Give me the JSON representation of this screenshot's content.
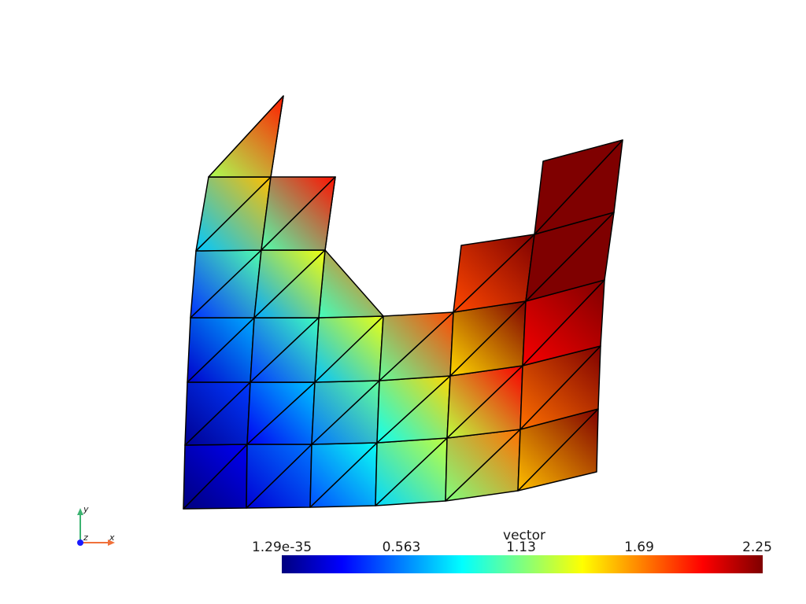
{
  "scalar_bar": {
    "title": "vector",
    "tick_labels": [
      "1.29e-35",
      "0.563",
      "1.13",
      "1.69",
      "2.25"
    ],
    "range": [
      0,
      2.25
    ],
    "colormap": [
      "#00007f",
      "#0000ff",
      "#00ffff",
      "#7fff7f",
      "#ffff00",
      "#ff7f00",
      "#ff0000",
      "#7f0000"
    ]
  },
  "axes_widget": {
    "x_label": "x",
    "y_label": "y",
    "z_label": "z",
    "x_color": "#f0703a",
    "y_color": "#3cb371",
    "z_color": "#1a1aff"
  },
  "mesh": {
    "edge_color": "#000000"
  }
}
